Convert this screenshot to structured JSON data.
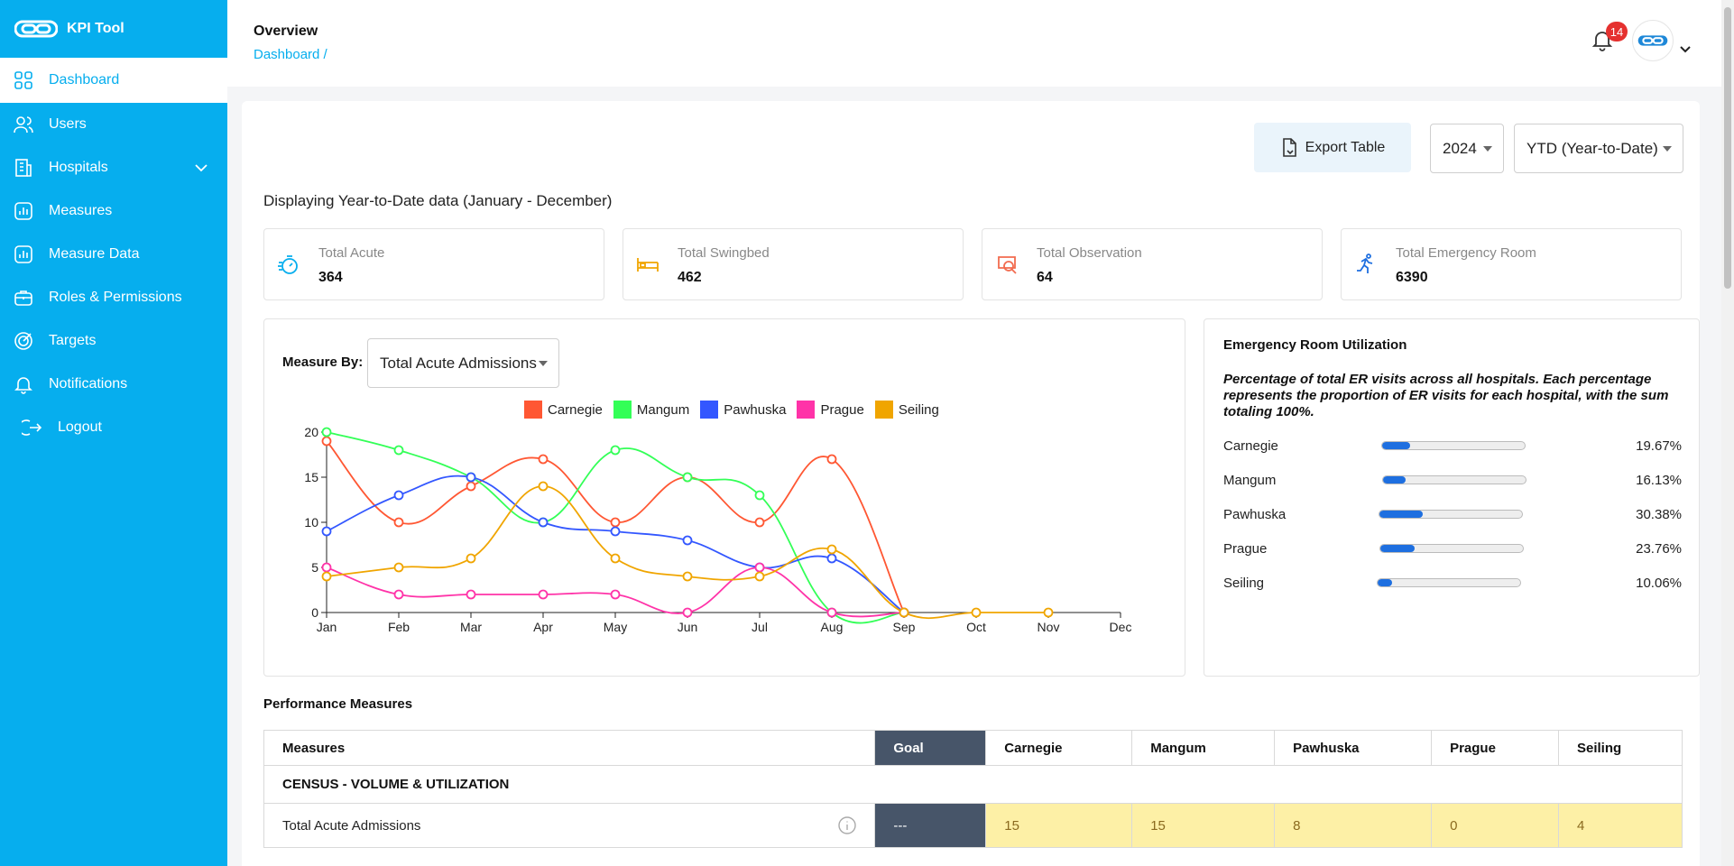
{
  "app": {
    "name": "KPI Tool",
    "accent": "#06aeee"
  },
  "sidebar": {
    "items": [
      {
        "label": "Dashboard",
        "icon": "grid-icon",
        "active": true
      },
      {
        "label": "Users",
        "icon": "users-icon"
      },
      {
        "label": "Hospitals",
        "icon": "building-icon",
        "expandable": true
      },
      {
        "label": "Measures",
        "icon": "chart-icon"
      },
      {
        "label": "Measure Data",
        "icon": "chart-icon"
      },
      {
        "label": "Roles & Permissions",
        "icon": "briefcase-icon"
      },
      {
        "label": "Targets",
        "icon": "target-icon"
      },
      {
        "label": "Notifications",
        "icon": "bell-icon"
      }
    ],
    "logout_label": "Logout"
  },
  "header": {
    "title": "Overview",
    "breadcrumb": "Dashboard /",
    "notification_count": "14"
  },
  "toolbar": {
    "export_label": "Export Table",
    "year": "2024",
    "period": "YTD (Year-to-Date)"
  },
  "display_note": "Displaying Year-to-Date data (January - December)",
  "stats": [
    {
      "label": "Total Acute",
      "value": "364",
      "icon": "stopwatch-icon",
      "color": "#06aeee"
    },
    {
      "label": "Total Swingbed",
      "value": "462",
      "icon": "bed-icon",
      "color": "#f0a500"
    },
    {
      "label": "Total Observation",
      "value": "64",
      "icon": "observation-icon",
      "color": "#f26b4f"
    },
    {
      "label": "Total Emergency Room",
      "value": "6390",
      "icon": "running-person-icon",
      "color": "#1e6fe0"
    }
  ],
  "measure_by": {
    "label": "Measure By:",
    "selected": "Total Acute Admissions"
  },
  "chart_data": {
    "type": "line",
    "x": [
      "Jan",
      "Feb",
      "Mar",
      "Apr",
      "May",
      "Jun",
      "Jul",
      "Aug",
      "Sep",
      "Oct",
      "Nov",
      "Dec"
    ],
    "ylim": [
      0,
      20
    ],
    "yticks": [
      0,
      5,
      10,
      15,
      20
    ],
    "grid": false,
    "legend": "top",
    "series": [
      {
        "name": "Carnegie",
        "color": "#ff5733",
        "values": [
          19,
          10,
          14,
          17,
          10,
          15,
          10,
          17,
          0,
          null,
          null,
          null
        ]
      },
      {
        "name": "Mangum",
        "color": "#33ff57",
        "values": [
          20,
          18,
          15,
          10,
          18,
          15,
          13,
          0,
          0,
          null,
          null,
          null
        ]
      },
      {
        "name": "Pawhuska",
        "color": "#3357ff",
        "values": [
          9,
          13,
          15,
          10,
          9,
          8,
          5,
          6,
          0,
          null,
          null,
          null
        ]
      },
      {
        "name": "Prague",
        "color": "#ff33a8",
        "values": [
          5,
          2,
          2,
          2,
          2,
          0,
          5,
          0,
          0,
          null,
          null,
          null
        ]
      },
      {
        "name": "Seiling",
        "color": "#f0a500",
        "values": [
          4,
          5,
          6,
          14,
          6,
          4,
          4,
          7,
          0,
          0,
          0,
          null
        ]
      }
    ]
  },
  "er": {
    "title": "Emergency Room Utilization",
    "description": "Percentage of total ER visits across all hospitals. Each percentage represents the proportion of ER visits for each hospital, with the sum totaling 100%.",
    "rows": [
      {
        "name": "Carnegie",
        "pct": "19.67%",
        "fill": 0.1967
      },
      {
        "name": "Mangum",
        "pct": "16.13%",
        "fill": 0.1613
      },
      {
        "name": "Pawhuska",
        "pct": "30.38%",
        "fill": 0.3038
      },
      {
        "name": "Prague",
        "pct": "23.76%",
        "fill": 0.2376
      },
      {
        "name": "Seiling",
        "pct": "10.06%",
        "fill": 0.1006
      }
    ]
  },
  "performance": {
    "title": "Performance Measures",
    "headers": [
      "Measures",
      "Goal",
      "Carnegie",
      "Mangum",
      "Pawhuska",
      "Prague",
      "Seiling"
    ],
    "section": "CENSUS - VOLUME & UTILIZATION",
    "rows": [
      {
        "measure": "Total Acute Admissions",
        "goal": "---",
        "values": [
          "15",
          "15",
          "8",
          "0",
          "4"
        ]
      }
    ]
  }
}
